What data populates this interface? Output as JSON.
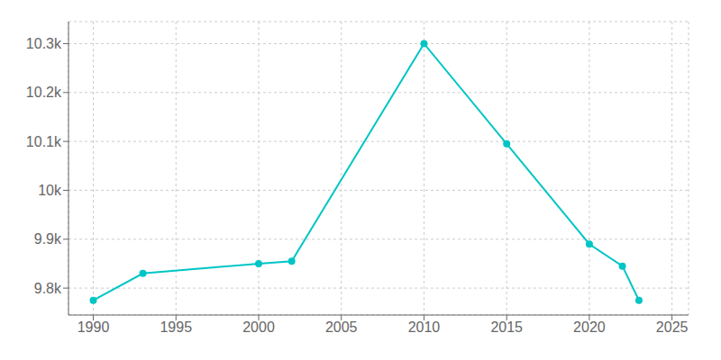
{
  "chart_data": {
    "type": "line",
    "x": [
      1990,
      1993,
      2000,
      2002,
      2010,
      2015,
      2020,
      2022,
      2023
    ],
    "values": [
      9775,
      9830,
      9850,
      9855,
      10300,
      10095,
      9890,
      9845,
      9775
    ],
    "color": "#00C5C5",
    "marker": "circle",
    "xlim": [
      1988.5,
      2026
    ],
    "ylim": [
      9745,
      10345
    ],
    "xticks": [
      1990,
      1995,
      2000,
      2005,
      2010,
      2015,
      2020,
      2025
    ],
    "yticks": [
      {
        "value": 9800,
        "label": "9.8k"
      },
      {
        "value": 9900,
        "label": "9.9k"
      },
      {
        "value": 10000,
        "label": "10k"
      },
      {
        "value": 10100,
        "label": "10.1k"
      },
      {
        "value": 10200,
        "label": "10.2k"
      },
      {
        "value": 10300,
        "label": "10.3k"
      }
    ],
    "grid": true
  }
}
